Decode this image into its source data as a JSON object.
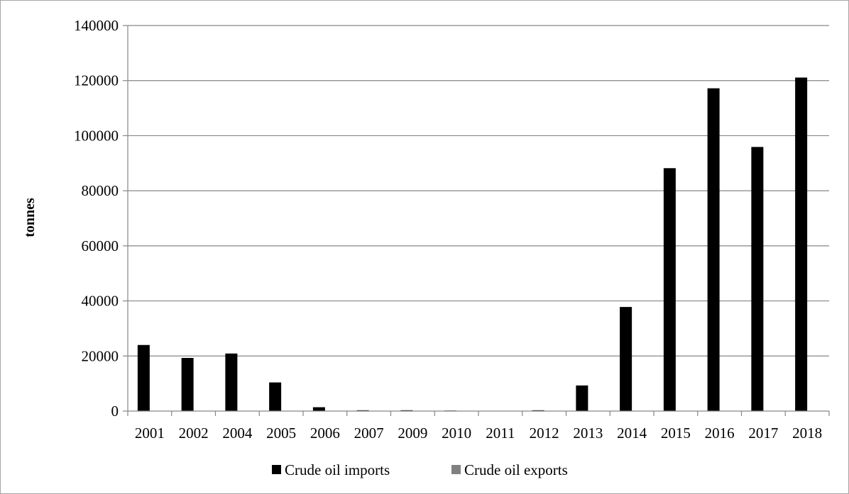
{
  "chart_data": {
    "type": "bar",
    "categories": [
      "2001",
      "2002",
      "2004",
      "2005",
      "2006",
      "2007",
      "2009",
      "2010",
      "2011",
      "2012",
      "2013",
      "2014",
      "2015",
      "2016",
      "2017",
      "2018"
    ],
    "series": [
      {
        "name": "Crude oil imports",
        "color": "#000000",
        "values": [
          24000,
          19300,
          20900,
          10400,
          1400,
          300,
          300,
          200,
          0,
          300,
          9300,
          37800,
          88200,
          117200,
          95900,
          121100
        ]
      },
      {
        "name": "Crude oil exports",
        "color": "#808080",
        "values": [
          0,
          0,
          0,
          0,
          0,
          0,
          0,
          0,
          0,
          0,
          0,
          0,
          0,
          0,
          0,
          0
        ]
      }
    ],
    "ylabel": "tonnes",
    "xlabel": "",
    "ylim": [
      0,
      140000
    ],
    "yticks": [
      0,
      20000,
      40000,
      60000,
      80000,
      100000,
      120000,
      140000
    ],
    "grid": true,
    "legend_position": "bottom"
  }
}
